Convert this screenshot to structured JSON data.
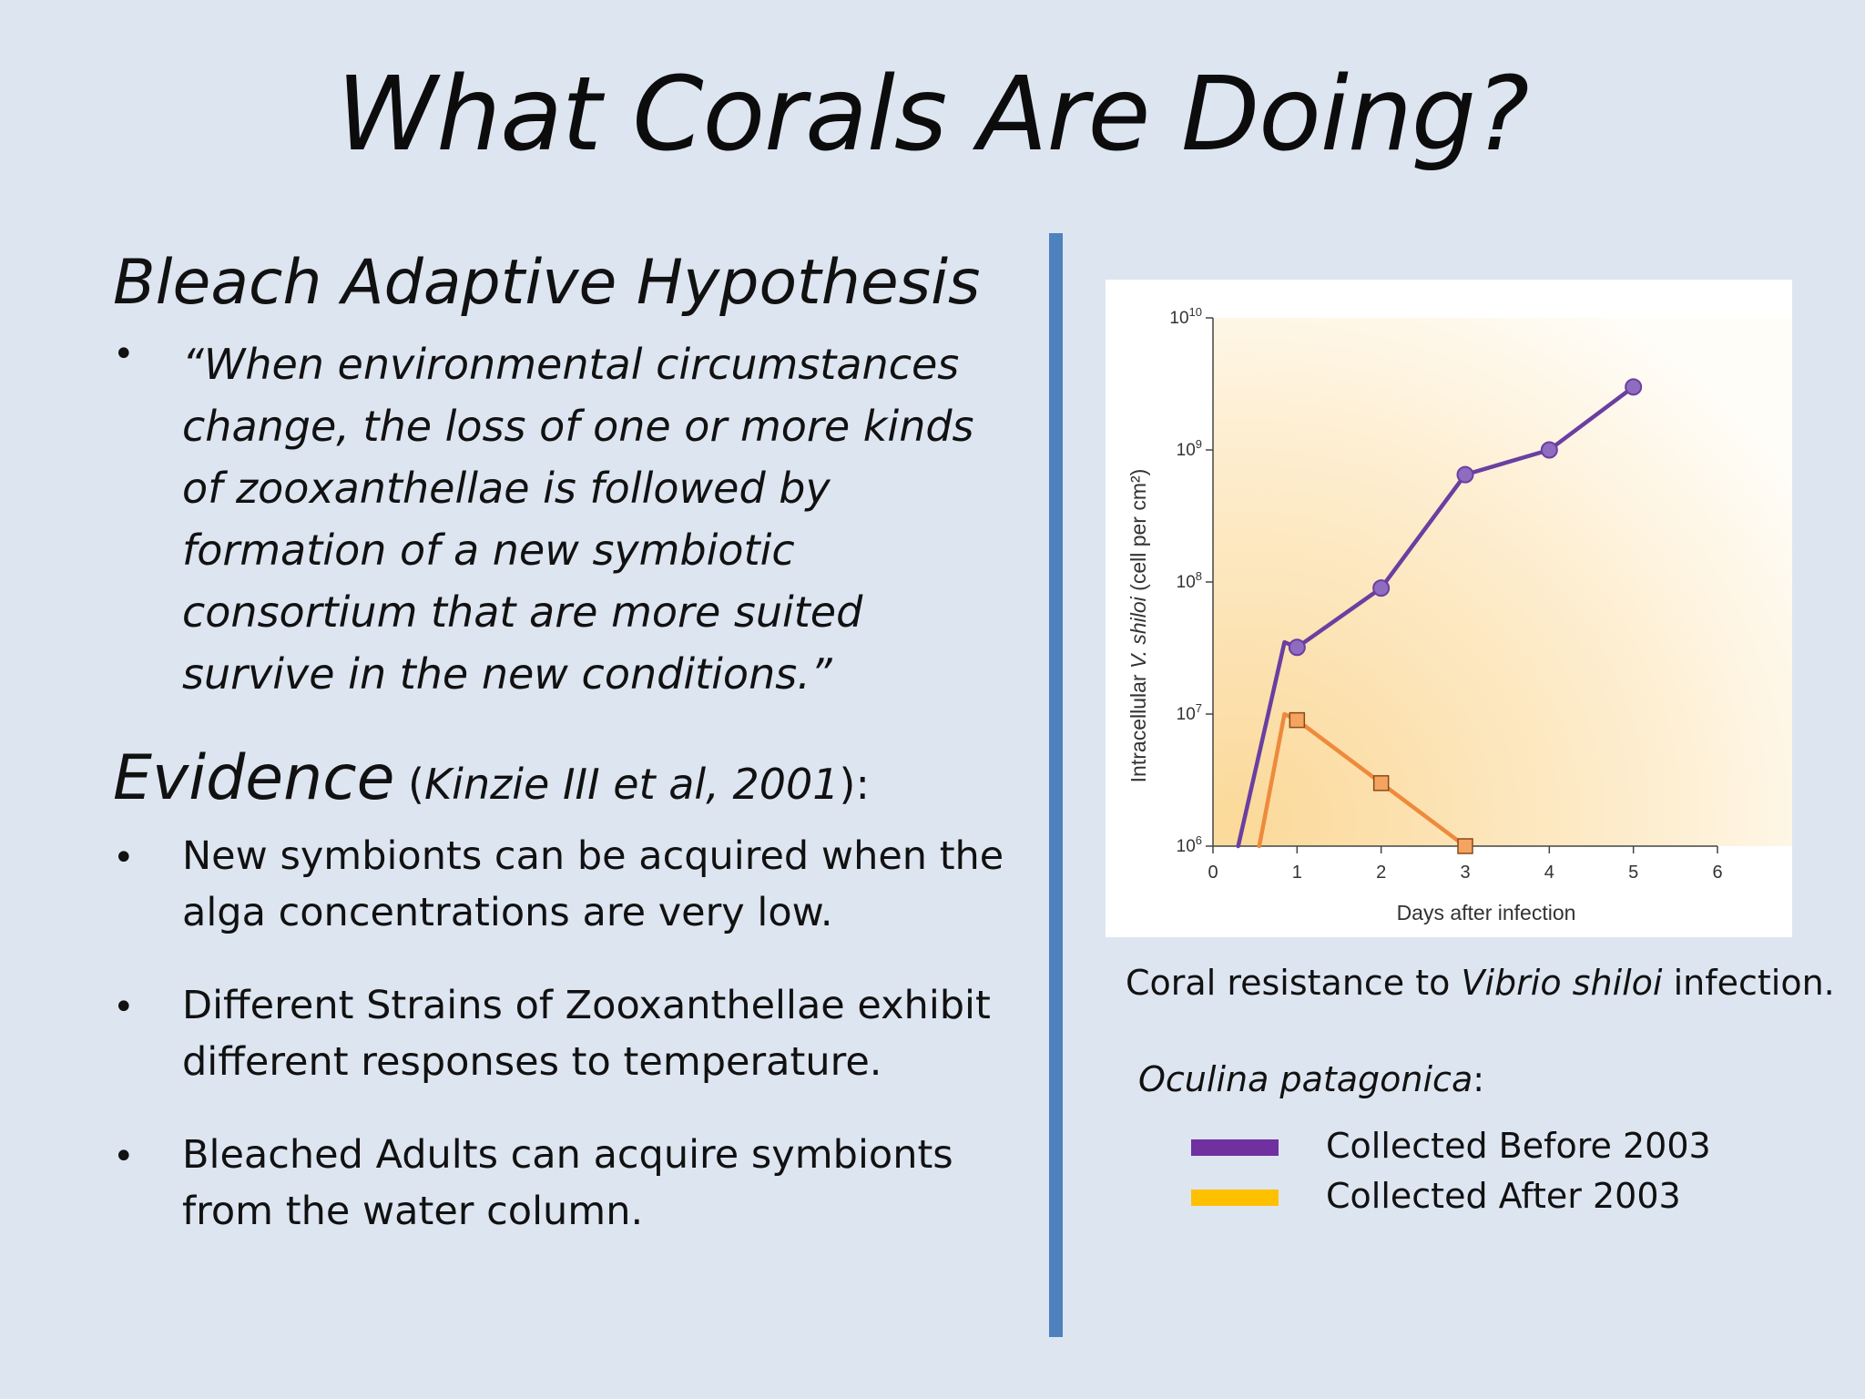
{
  "slide": {
    "title": "What Corals Are Doing?",
    "hypothesis_heading": "Bleach Adaptive Hypothesis",
    "quote_bullet": "•",
    "quote": "“When environmental circumstances change, the loss of one or more kinds of zooxanthellae is followed by formation of a new symbiotic consortium that are more suited survive in the new conditions.”",
    "evidence_heading": "Evidence",
    "evidence_citation_open": " (",
    "evidence_citation": "Kinzie III et al, 2001",
    "evidence_citation_close": "):",
    "evidence_items": [
      "New symbionts can be acquired when the alga concentrations are very low.",
      "Different Strains of Zooxanthellae exhibit different responses to temperature.",
      "Bleached Adults can acquire symbionts from the water column."
    ]
  },
  "caption": {
    "prefix": "Coral resistance to ",
    "species": "Vibrio shiloi",
    "suffix": " infection."
  },
  "legend": {
    "title": "Oculina patagonica",
    "title_suffix": ":",
    "items": [
      {
        "label": "Collected Before 2003",
        "color": "#7030a0"
      },
      {
        "label": "Collected After 2003",
        "color": "#ffc000"
      }
    ]
  },
  "chart_data": {
    "type": "line",
    "xlabel": "Days after infection",
    "ylabel_prefix": "Intracellular ",
    "ylabel_italic": "V. shiloi",
    "ylabel_suffix": " (cell per cm²)",
    "x_ticks": [
      "0",
      "1",
      "2",
      "3",
      "4",
      "5",
      "6"
    ],
    "xlim": [
      0,
      6
    ],
    "y_scale": "log",
    "y_ticks": [
      {
        "base": "10",
        "exp": "6",
        "value": 1000000
      },
      {
        "base": "10",
        "exp": "7",
        "value": 10000000
      },
      {
        "base": "10",
        "exp": "8",
        "value": 100000000
      },
      {
        "base": "10",
        "exp": "9",
        "value": 1000000000
      },
      {
        "base": "10",
        "exp": "10",
        "value": 10000000000
      }
    ],
    "ylim": [
      1000000,
      10000000000
    ],
    "series": [
      {
        "line_color": "#6a3fa0",
        "marker": "circle",
        "marker_color": "#8e6cc0",
        "x": [
          0.3,
          0.85,
          1,
          2,
          3,
          4,
          5
        ],
        "y": [
          1000000,
          35000000,
          32000000,
          90000000,
          650000000,
          1000000000,
          3000000000
        ],
        "markers_at": [
          2,
          3,
          4,
          5,
          6
        ]
      },
      {
        "line_color": "#ee8a3c",
        "marker": "square",
        "marker_color": "#f4a460",
        "x": [
          0.55,
          0.85,
          1,
          2,
          3
        ],
        "y": [
          1000000,
          10000000,
          9000000,
          3000000,
          1000000
        ],
        "markers_at": [
          2,
          3,
          4
        ]
      }
    ]
  }
}
